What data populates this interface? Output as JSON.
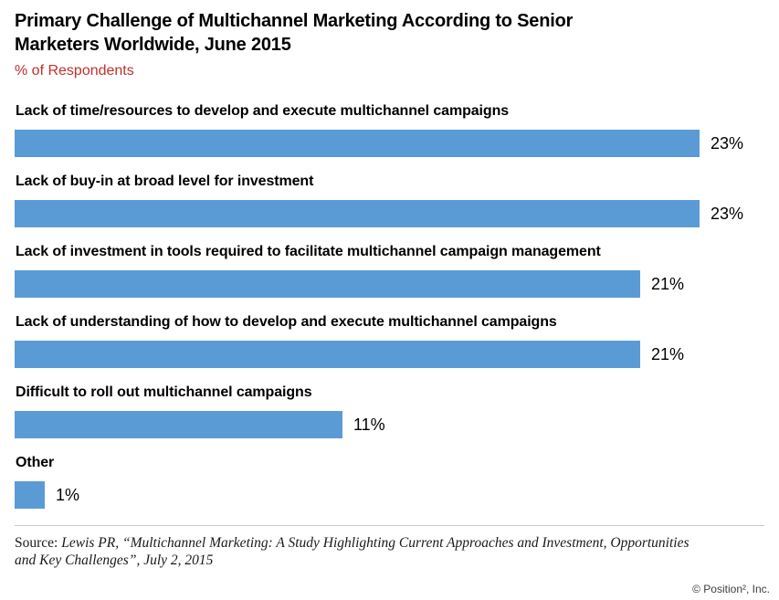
{
  "header": {
    "title_lines": [
      "Primary Challenge of Multichannel Marketing According to Senior",
      "Marketers Worldwide, June 2015"
    ],
    "subtitle": "% of Respondents"
  },
  "chart_data": {
    "type": "bar",
    "orientation": "horizontal",
    "title": "Primary Challenge of Multichannel Marketing According to Senior Marketers Worldwide, June 2015",
    "xlabel": "% of Respondents",
    "ylabel": "",
    "xlim": [
      0,
      25
    ],
    "grid": false,
    "legend": "none",
    "bar_color": "#5b9bd5",
    "categories": [
      "Lack of time/resources to develop and execute multichannel campaigns",
      "Lack of buy-in at broad level for investment",
      "Lack of investment in tools required to facilitate multichannel campaign management",
      "Lack of understanding of how to develop and execute multichannel campaigns",
      "Difficult to roll out multichannel campaigns",
      "Other"
    ],
    "values": [
      23,
      23,
      21,
      21,
      11,
      1
    ],
    "value_labels": [
      "23%",
      "23%",
      "21%",
      "21%",
      "11%",
      "1%"
    ]
  },
  "footer": {
    "source_prefix": "Source:",
    "source_line1": "Lewis PR, “Multichannel Marketing: A Study Highlighting Current Approaches and Investment, Opportunities",
    "source_line2": "and Key Challenges”, July 2, 2015",
    "copyright": "© Position², Inc."
  },
  "colors": {
    "bar": "#5b9bd5",
    "title": "#000000",
    "subtitle": "#c0302b",
    "divider": "#c9c9c9",
    "copyright": "#3d3d3d"
  }
}
